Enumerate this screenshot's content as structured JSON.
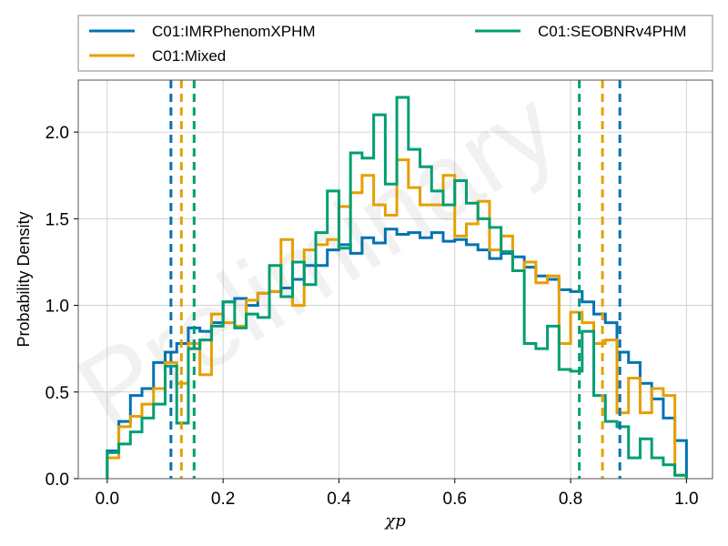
{
  "chart_data": {
    "type": "histogram",
    "title": "",
    "xlabel": "χp",
    "ylabel": "Probability Density",
    "xlim": [
      -0.05,
      1.045
    ],
    "ylim": [
      0,
      2.3
    ],
    "xticks": [
      0.0,
      0.2,
      0.4,
      0.6,
      0.8,
      1.0
    ],
    "xtick_labels": [
      "0.0",
      "0.2",
      "0.4",
      "0.6",
      "0.8",
      "1.0"
    ],
    "yticks": [
      0.0,
      0.5,
      1.0,
      1.5,
      2.0
    ],
    "ytick_labels": [
      "0.0",
      "0.5",
      "1.0",
      "1.5",
      "2.0"
    ],
    "grid": true,
    "legend_position": "top, outside plot, 2 columns",
    "watermark": "Preliminary",
    "series": [
      {
        "name": "C01:IMRPhenomXPHM",
        "color": "#0072b2",
        "bin_edges": [
          0.0,
          0.02,
          0.04,
          0.06,
          0.08,
          0.1,
          0.12,
          0.14,
          0.16,
          0.18,
          0.2,
          0.22,
          0.24,
          0.26,
          0.28,
          0.3,
          0.32,
          0.34,
          0.36,
          0.38,
          0.4,
          0.42,
          0.44,
          0.46,
          0.48,
          0.5,
          0.52,
          0.54,
          0.56,
          0.58,
          0.6,
          0.62,
          0.64,
          0.66,
          0.68,
          0.7,
          0.72,
          0.74,
          0.76,
          0.78,
          0.8,
          0.82,
          0.84,
          0.86,
          0.88,
          0.9,
          0.92,
          0.94,
          0.96,
          0.98,
          1.0
        ],
        "density": [
          0.16,
          0.33,
          0.48,
          0.52,
          0.67,
          0.73,
          0.78,
          0.87,
          0.85,
          0.9,
          1.02,
          1.04,
          1.0,
          1.07,
          1.08,
          1.1,
          1.15,
          1.23,
          1.23,
          1.32,
          1.35,
          1.3,
          1.39,
          1.36,
          1.44,
          1.41,
          1.42,
          1.39,
          1.42,
          1.37,
          1.38,
          1.35,
          1.32,
          1.27,
          1.3,
          1.28,
          1.22,
          1.17,
          1.15,
          1.09,
          1.08,
          1.02,
          0.95,
          0.9,
          0.73,
          0.67,
          0.55,
          0.46,
          0.35,
          0.22
        ],
        "interval": [
          0.11,
          0.885
        ]
      },
      {
        "name": "C01:Mixed",
        "color": "#e69f00",
        "bin_edges": [
          0.0,
          0.02,
          0.04,
          0.06,
          0.08,
          0.1,
          0.12,
          0.14,
          0.16,
          0.18,
          0.2,
          0.22,
          0.24,
          0.26,
          0.28,
          0.3,
          0.32,
          0.34,
          0.36,
          0.38,
          0.4,
          0.42,
          0.44,
          0.46,
          0.48,
          0.5,
          0.52,
          0.54,
          0.56,
          0.58,
          0.6,
          0.62,
          0.64,
          0.66,
          0.68,
          0.7,
          0.72,
          0.74,
          0.76,
          0.78,
          0.8,
          0.82,
          0.84,
          0.86,
          0.88,
          0.9,
          0.92,
          0.94,
          0.96,
          0.98,
          1.0
        ],
        "density": [
          0.12,
          0.3,
          0.36,
          0.43,
          0.52,
          0.67,
          0.55,
          0.78,
          0.6,
          0.95,
          0.9,
          0.88,
          1.03,
          1.07,
          1.08,
          1.38,
          1.0,
          1.32,
          1.35,
          1.38,
          1.57,
          1.65,
          1.75,
          1.58,
          1.52,
          1.84,
          1.68,
          1.58,
          1.58,
          1.75,
          1.4,
          1.47,
          1.6,
          1.32,
          1.4,
          1.2,
          1.25,
          1.13,
          1.17,
          0.78,
          0.96,
          0.9,
          0.78,
          0.8,
          0.38,
          0.58,
          0.38,
          0.52,
          0.48,
          0.02
        ],
        "interval": [
          0.128,
          0.855
        ]
      },
      {
        "name": "C01:SEOBNRv4PHM",
        "color": "#009e73",
        "bin_edges": [
          0.0,
          0.02,
          0.04,
          0.06,
          0.08,
          0.1,
          0.12,
          0.14,
          0.16,
          0.18,
          0.2,
          0.22,
          0.24,
          0.26,
          0.28,
          0.3,
          0.32,
          0.34,
          0.36,
          0.38,
          0.4,
          0.42,
          0.44,
          0.46,
          0.48,
          0.5,
          0.52,
          0.54,
          0.56,
          0.58,
          0.6,
          0.62,
          0.64,
          0.66,
          0.68,
          0.7,
          0.72,
          0.74,
          0.76,
          0.78,
          0.8,
          0.82,
          0.84,
          0.86,
          0.88,
          0.9,
          0.92,
          0.94,
          0.96,
          0.98,
          1.0
        ],
        "density": [
          0.15,
          0.2,
          0.27,
          0.35,
          0.43,
          0.65,
          0.32,
          0.75,
          0.8,
          0.88,
          1.02,
          0.87,
          0.95,
          0.93,
          1.23,
          1.05,
          1.25,
          1.12,
          1.42,
          1.66,
          1.33,
          1.88,
          1.85,
          2.1,
          1.7,
          2.2,
          1.9,
          1.8,
          1.66,
          1.58,
          1.72,
          1.59,
          1.5,
          1.45,
          1.31,
          1.2,
          0.78,
          0.75,
          0.88,
          0.63,
          0.62,
          0.85,
          0.48,
          0.33,
          0.3,
          0.12,
          0.23,
          0.12,
          0.08,
          0.02
        ],
        "interval": [
          0.15,
          0.815
        ]
      }
    ]
  }
}
